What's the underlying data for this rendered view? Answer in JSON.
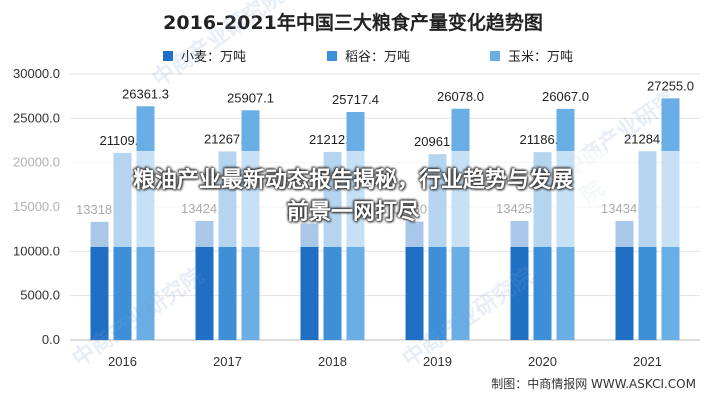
{
  "chart_data": {
    "type": "bar",
    "title": "2016-2021年中国三大粮食产量变化趋势图",
    "categories": [
      "2016",
      "2017",
      "2018",
      "2019",
      "2020",
      "2021"
    ],
    "series": [
      {
        "name": "小麦：万吨",
        "color": "#1f6fc5",
        "values": [
          13318.8,
          13424.1,
          13144.0,
          13360.0,
          13425.0,
          13434.0
        ]
      },
      {
        "name": "稻谷：万吨",
        "color": "#3d8fd8",
        "values": [
          21109.4,
          21267.6,
          21212.9,
          20961.4,
          21186.0,
          21284.3
        ]
      },
      {
        "name": "玉米：万吨",
        "color": "#6aaee6",
        "values": [
          26361.3,
          25907.1,
          25717.4,
          26078.0,
          26067.0,
          27255.0
        ]
      }
    ],
    "data_labels": [
      [
        "13318.8",
        "21109.4",
        "26361.3"
      ],
      [
        "13424.1",
        "21267.6",
        "25907.1"
      ],
      [
        "13144.0",
        "21212.9",
        "25717.4"
      ],
      [
        "13360.0",
        "20961.4",
        "26078.0"
      ],
      [
        "13425.0",
        "21186.0",
        "26067.0"
      ],
      [
        "13434.0",
        "21284.3",
        "27255.0"
      ]
    ],
    "yticks": [
      "0.0",
      "5000.0",
      "10000.0",
      "15000.0",
      "20000.0",
      "25000.0",
      "30000.0"
    ],
    "ylim": [
      0,
      30000
    ],
    "grid": true,
    "legend_position": "top"
  },
  "overlay": {
    "line1": "粮油产业最新动态报告揭秘，行业趋势与发展",
    "line2": "前景一网打尽"
  },
  "source": "制图：中商情报网 WWW.ASKCI.COM",
  "watermark": "中商产业研究院"
}
